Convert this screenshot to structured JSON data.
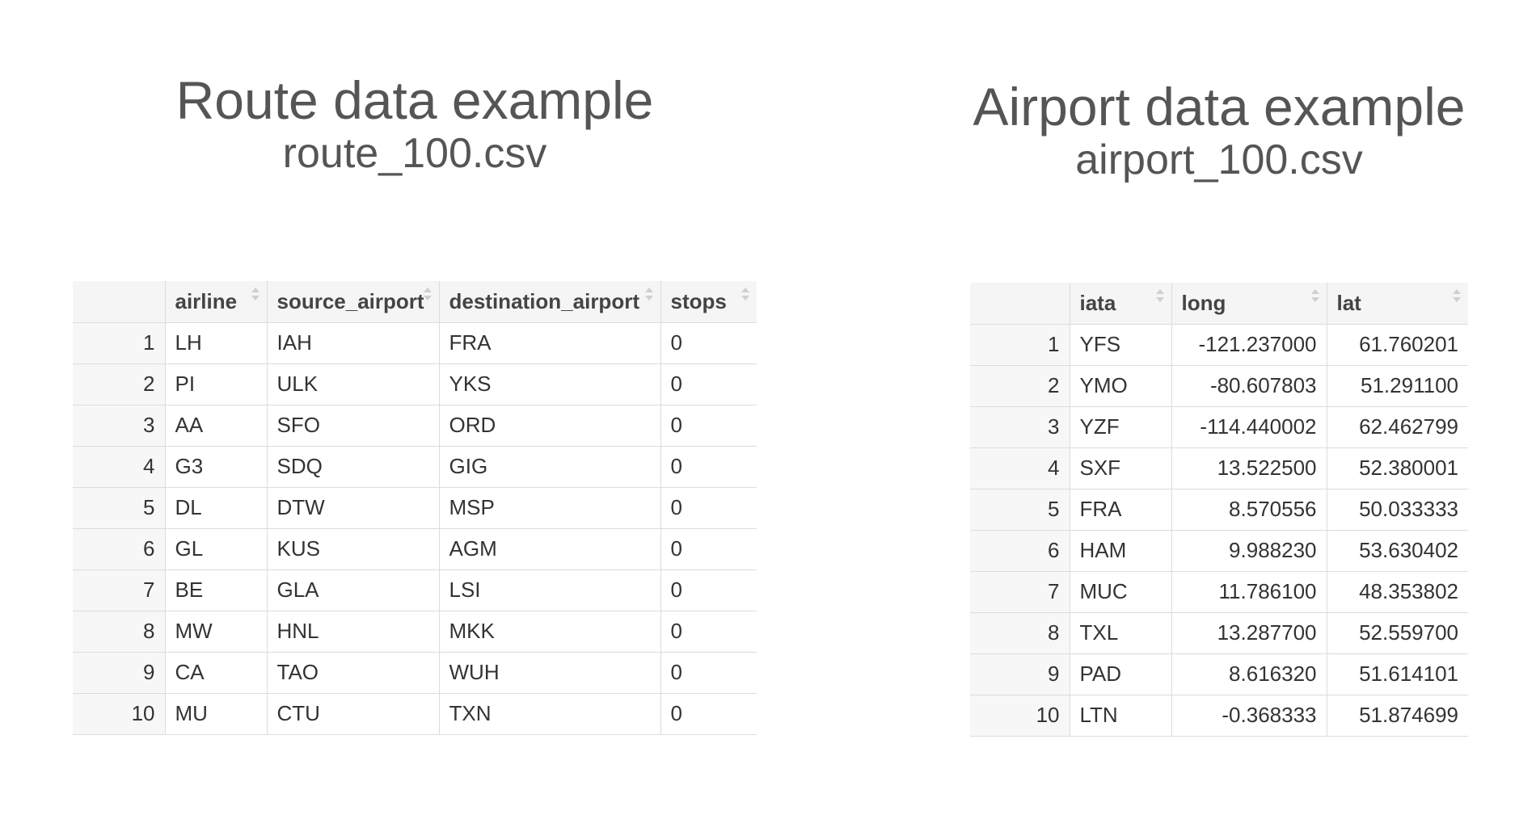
{
  "route": {
    "title": "Route data example",
    "filename": "route_100.csv",
    "columns": [
      "airline",
      "source_airport",
      "destination_airport",
      "stops"
    ],
    "rows": [
      {
        "n": "1",
        "airline": "LH",
        "source_airport": "IAH",
        "destination_airport": "FRA",
        "stops": "0"
      },
      {
        "n": "2",
        "airline": "PI",
        "source_airport": "ULK",
        "destination_airport": "YKS",
        "stops": "0"
      },
      {
        "n": "3",
        "airline": "AA",
        "source_airport": "SFO",
        "destination_airport": "ORD",
        "stops": "0"
      },
      {
        "n": "4",
        "airline": "G3",
        "source_airport": "SDQ",
        "destination_airport": "GIG",
        "stops": "0"
      },
      {
        "n": "5",
        "airline": "DL",
        "source_airport": "DTW",
        "destination_airport": "MSP",
        "stops": "0"
      },
      {
        "n": "6",
        "airline": "GL",
        "source_airport": "KUS",
        "destination_airport": "AGM",
        "stops": "0"
      },
      {
        "n": "7",
        "airline": "BE",
        "source_airport": "GLA",
        "destination_airport": "LSI",
        "stops": "0"
      },
      {
        "n": "8",
        "airline": "MW",
        "source_airport": "HNL",
        "destination_airport": "MKK",
        "stops": "0"
      },
      {
        "n": "9",
        "airline": "CA",
        "source_airport": "TAO",
        "destination_airport": "WUH",
        "stops": "0"
      },
      {
        "n": "10",
        "airline": "MU",
        "source_airport": "CTU",
        "destination_airport": "TXN",
        "stops": "0"
      }
    ]
  },
  "airport": {
    "title": "Airport data example",
    "filename": "airport_100.csv",
    "columns": [
      "iata",
      "long",
      "lat"
    ],
    "rows": [
      {
        "n": "1",
        "iata": "YFS",
        "long": "-121.237000",
        "lat": "61.760201"
      },
      {
        "n": "2",
        "iata": "YMO",
        "long": "-80.607803",
        "lat": "51.291100"
      },
      {
        "n": "3",
        "iata": "YZF",
        "long": "-114.440002",
        "lat": "62.462799"
      },
      {
        "n": "4",
        "iata": "SXF",
        "long": "13.522500",
        "lat": "52.380001"
      },
      {
        "n": "5",
        "iata": "FRA",
        "long": "8.570556",
        "lat": "50.033333"
      },
      {
        "n": "6",
        "iata": "HAM",
        "long": "9.988230",
        "lat": "53.630402"
      },
      {
        "n": "7",
        "iata": "MUC",
        "long": "11.786100",
        "lat": "48.353802"
      },
      {
        "n": "8",
        "iata": "TXL",
        "long": "13.287700",
        "lat": "52.559700"
      },
      {
        "n": "9",
        "iata": "PAD",
        "long": "8.616320",
        "lat": "51.614101"
      },
      {
        "n": "10",
        "iata": "LTN",
        "long": "-0.368333",
        "lat": "51.874699"
      }
    ]
  }
}
